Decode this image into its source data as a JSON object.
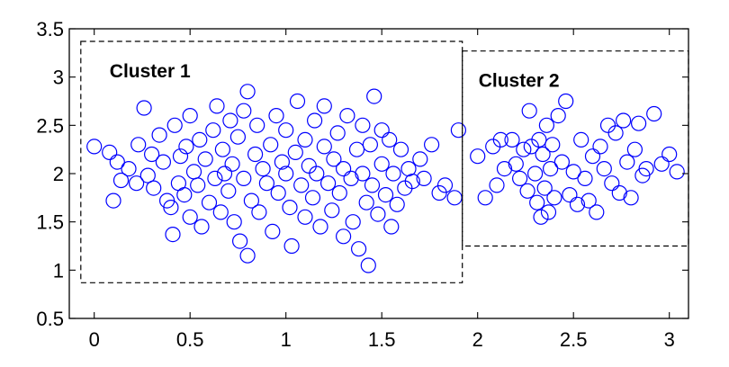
{
  "chart_data": {
    "type": "scatter",
    "title": "",
    "xlabel": "",
    "ylabel": "",
    "xlim": [
      -0.13,
      3.1
    ],
    "ylim": [
      0.5,
      3.5
    ],
    "grid": false,
    "marker_color": "#0000ff",
    "x_ticks": [
      {
        "value": 0,
        "label": "0"
      },
      {
        "value": 0.5,
        "label": "0.5"
      },
      {
        "value": 1,
        "label": "1"
      },
      {
        "value": 1.5,
        "label": "1.5"
      },
      {
        "value": 2,
        "label": "2"
      },
      {
        "value": 2.5,
        "label": "2.5"
      },
      {
        "value": 3,
        "label": "3"
      }
    ],
    "y_ticks": [
      {
        "value": 0.5,
        "label": "0.5"
      },
      {
        "value": 1,
        "label": "1"
      },
      {
        "value": 1.5,
        "label": "1.5"
      },
      {
        "value": 2,
        "label": "2"
      },
      {
        "value": 2.5,
        "label": "2.5"
      },
      {
        "value": 3,
        "label": "3"
      },
      {
        "value": 3.5,
        "label": "3.5"
      }
    ],
    "clusters": [
      {
        "label": "Cluster 1",
        "box": {
          "x0": -0.07,
          "x1": 1.92,
          "y0": 0.87,
          "y1": 3.37
        }
      },
      {
        "label": "Cluster 2",
        "box": {
          "x0": 1.92,
          "x1": 3.1,
          "y0": 1.25,
          "y1": 3.27
        }
      }
    ],
    "series": [
      {
        "points": [
          [
            0.0,
            2.28
          ],
          [
            0.08,
            2.22
          ],
          [
            0.1,
            1.72
          ],
          [
            0.12,
            2.12
          ],
          [
            0.14,
            1.93
          ],
          [
            0.18,
            2.05
          ],
          [
            0.22,
            1.9
          ],
          [
            0.23,
            2.3
          ],
          [
            0.26,
            2.68
          ],
          [
            0.28,
            1.98
          ],
          [
            0.3,
            2.2
          ],
          [
            0.31,
            1.85
          ],
          [
            0.34,
            2.4
          ],
          [
            0.36,
            2.12
          ],
          [
            0.38,
            1.72
          ],
          [
            0.4,
            1.65
          ],
          [
            0.41,
            1.37
          ],
          [
            0.42,
            2.5
          ],
          [
            0.44,
            1.9
          ],
          [
            0.45,
            2.18
          ],
          [
            0.47,
            1.78
          ],
          [
            0.48,
            2.28
          ],
          [
            0.5,
            2.6
          ],
          [
            0.5,
            1.55
          ],
          [
            0.52,
            2.02
          ],
          [
            0.54,
            1.88
          ],
          [
            0.55,
            2.35
          ],
          [
            0.56,
            1.45
          ],
          [
            0.58,
            2.15
          ],
          [
            0.6,
            1.7
          ],
          [
            0.62,
            2.45
          ],
          [
            0.63,
            1.95
          ],
          [
            0.64,
            2.7
          ],
          [
            0.66,
            1.6
          ],
          [
            0.67,
            2.25
          ],
          [
            0.68,
            2.0
          ],
          [
            0.7,
            1.82
          ],
          [
            0.71,
            2.55
          ],
          [
            0.72,
            2.1
          ],
          [
            0.73,
            1.5
          ],
          [
            0.75,
            2.38
          ],
          [
            0.76,
            1.3
          ],
          [
            0.78,
            1.95
          ],
          [
            0.78,
            2.65
          ],
          [
            0.8,
            1.15
          ],
          [
            0.8,
            2.85
          ],
          [
            0.82,
            1.72
          ],
          [
            0.84,
            2.2
          ],
          [
            0.85,
            2.5
          ],
          [
            0.86,
            1.6
          ],
          [
            0.88,
            2.05
          ],
          [
            0.9,
            1.9
          ],
          [
            0.92,
            2.3
          ],
          [
            0.93,
            1.4
          ],
          [
            0.95,
            2.6
          ],
          [
            0.96,
            1.8
          ],
          [
            0.98,
            2.12
          ],
          [
            1.0,
            2.0
          ],
          [
            1.0,
            2.45
          ],
          [
            1.02,
            1.65
          ],
          [
            1.03,
            1.25
          ],
          [
            1.05,
            2.22
          ],
          [
            1.06,
            2.75
          ],
          [
            1.08,
            1.88
          ],
          [
            1.1,
            2.35
          ],
          [
            1.1,
            1.55
          ],
          [
            1.12,
            2.08
          ],
          [
            1.14,
            1.75
          ],
          [
            1.15,
            2.55
          ],
          [
            1.16,
            2.0
          ],
          [
            1.18,
            1.45
          ],
          [
            1.2,
            2.28
          ],
          [
            1.2,
            2.7
          ],
          [
            1.22,
            1.9
          ],
          [
            1.24,
            1.62
          ],
          [
            1.25,
            2.15
          ],
          [
            1.27,
            2.42
          ],
          [
            1.28,
            1.8
          ],
          [
            1.3,
            2.05
          ],
          [
            1.3,
            1.35
          ],
          [
            1.32,
            2.6
          ],
          [
            1.34,
            1.95
          ],
          [
            1.35,
            1.5
          ],
          [
            1.37,
            2.25
          ],
          [
            1.38,
            1.22
          ],
          [
            1.4,
            2.0
          ],
          [
            1.4,
            2.5
          ],
          [
            1.42,
            1.7
          ],
          [
            1.43,
            1.05
          ],
          [
            1.44,
            2.3
          ],
          [
            1.45,
            1.88
          ],
          [
            1.46,
            2.8
          ],
          [
            1.48,
            1.58
          ],
          [
            1.5,
            2.1
          ],
          [
            1.5,
            2.45
          ],
          [
            1.52,
            1.78
          ],
          [
            1.54,
            2.35
          ],
          [
            1.55,
            1.45
          ],
          [
            1.56,
            2.0
          ],
          [
            1.58,
            1.68
          ],
          [
            1.6,
            2.25
          ],
          [
            1.62,
            1.85
          ],
          [
            1.64,
            2.05
          ],
          [
            1.66,
            1.92
          ],
          [
            1.7,
            2.15
          ],
          [
            1.72,
            1.95
          ],
          [
            1.76,
            2.3
          ],
          [
            1.8,
            1.8
          ],
          [
            1.83,
            1.88
          ],
          [
            1.88,
            1.75
          ],
          [
            1.9,
            2.45
          ]
        ]
      },
      {
        "points": [
          [
            2.0,
            2.18
          ],
          [
            2.04,
            1.75
          ],
          [
            2.08,
            2.28
          ],
          [
            2.1,
            1.88
          ],
          [
            2.12,
            2.35
          ],
          [
            2.14,
            2.05
          ],
          [
            2.18,
            2.35
          ],
          [
            2.2,
            2.1
          ],
          [
            2.22,
            1.95
          ],
          [
            2.24,
            2.25
          ],
          [
            2.26,
            1.82
          ],
          [
            2.27,
            2.65
          ],
          [
            2.28,
            2.28
          ],
          [
            2.3,
            2.0
          ],
          [
            2.31,
            1.7
          ],
          [
            2.32,
            2.35
          ],
          [
            2.33,
            1.55
          ],
          [
            2.34,
            2.2
          ],
          [
            2.35,
            1.85
          ],
          [
            2.36,
            2.5
          ],
          [
            2.37,
            1.6
          ],
          [
            2.38,
            2.05
          ],
          [
            2.39,
            2.3
          ],
          [
            2.4,
            1.75
          ],
          [
            2.42,
            2.6
          ],
          [
            2.44,
            2.12
          ],
          [
            2.46,
            2.75
          ],
          [
            2.48,
            1.78
          ],
          [
            2.5,
            2.02
          ],
          [
            2.52,
            1.68
          ],
          [
            2.54,
            2.35
          ],
          [
            2.56,
            1.95
          ],
          [
            2.58,
            1.72
          ],
          [
            2.6,
            2.18
          ],
          [
            2.62,
            1.6
          ],
          [
            2.64,
            2.28
          ],
          [
            2.66,
            2.05
          ],
          [
            2.68,
            2.5
          ],
          [
            2.7,
            1.9
          ],
          [
            2.72,
            2.42
          ],
          [
            2.74,
            1.8
          ],
          [
            2.76,
            2.55
          ],
          [
            2.78,
            2.12
          ],
          [
            2.8,
            1.75
          ],
          [
            2.82,
            2.25
          ],
          [
            2.84,
            2.52
          ],
          [
            2.86,
            1.98
          ],
          [
            2.88,
            2.05
          ],
          [
            2.92,
            2.62
          ],
          [
            2.96,
            2.1
          ],
          [
            3.0,
            2.2
          ],
          [
            3.04,
            2.02
          ]
        ]
      }
    ]
  }
}
